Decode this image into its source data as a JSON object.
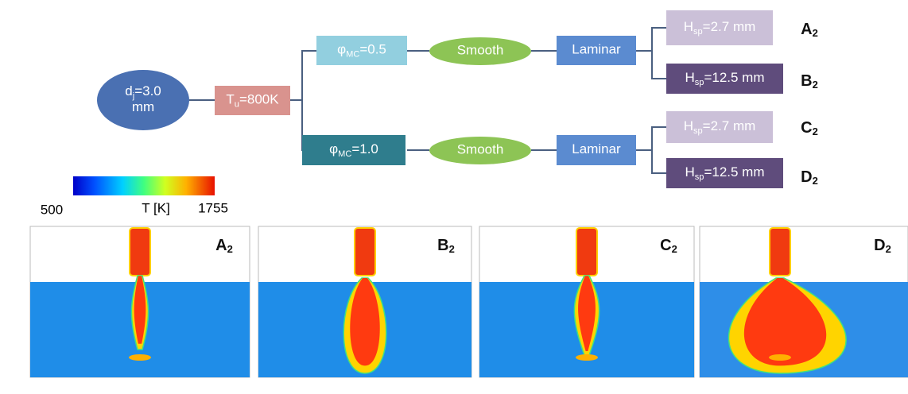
{
  "tree": {
    "nodes": [
      {
        "base": "d",
        "sub": "j",
        "rest": "=3.0",
        "line2": "mm"
      },
      {
        "base": "T",
        "sub": "u",
        "rest": "=800K"
      },
      {
        "base": "φ",
        "sub": "MC",
        "rest": "=0.5"
      },
      {
        "base": "Smooth"
      },
      {
        "base": "Laminar"
      },
      {
        "base": "H",
        "sub": "sp",
        "rest": "=2.7 mm"
      },
      {
        "base": "H",
        "sub": "sp",
        "rest": "=12.5 mm"
      },
      {
        "base": "φ",
        "sub": "MC",
        "rest": "=1.0"
      },
      {
        "base": "Smooth"
      },
      {
        "base": "Laminar"
      },
      {
        "base": "H",
        "sub": "sp",
        "rest": "=2.7 mm"
      },
      {
        "base": "H",
        "sub": "sp",
        "rest": "=12.5 mm"
      }
    ],
    "cases": [
      {
        "base": "A",
        "sub": "2"
      },
      {
        "base": "B",
        "sub": "2"
      },
      {
        "base": "C",
        "sub": "2"
      },
      {
        "base": "D",
        "sub": "2"
      }
    ]
  },
  "colorbar": {
    "min": "500",
    "title": "T [K]",
    "max": "1755"
  },
  "panels": [
    {
      "base": "A",
      "sub": "2"
    },
    {
      "base": "B",
      "sub": "2"
    },
    {
      "base": "C",
      "sub": "2"
    },
    {
      "base": "D",
      "sub": "2"
    }
  ]
}
